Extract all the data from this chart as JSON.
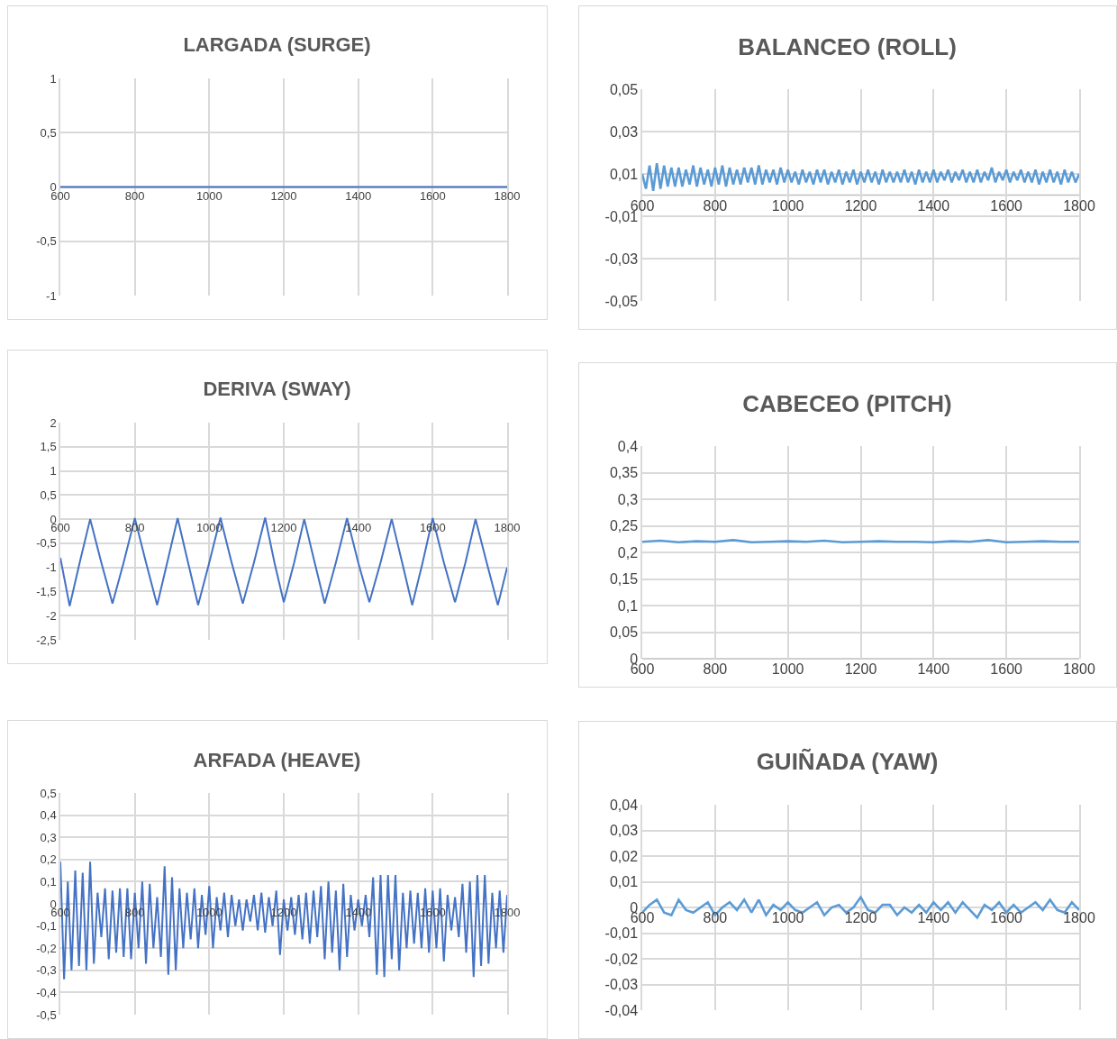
{
  "chart_data": [
    {
      "type": "line",
      "title": "LARGADA (SURGE)",
      "xlim": [
        600,
        1800
      ],
      "xticks": [
        600,
        800,
        1000,
        1200,
        1400,
        1600,
        1800
      ],
      "ylim": [
        -1,
        1
      ],
      "yticks": [
        {
          "value": -1,
          "label": "-1"
        },
        {
          "value": -0.5,
          "label": "-0,5"
        },
        0,
        {
          "value": 0.5,
          "label": "0,5"
        },
        1
      ],
      "grid": true,
      "series": [
        {
          "color": "#4472c4",
          "x": [
            600,
            1800
          ],
          "values": [
            0,
            0
          ]
        }
      ]
    },
    {
      "type": "line",
      "title": "BALANCEO (ROLL)",
      "xlim": [
        600,
        1800
      ],
      "xticks": [
        600,
        800,
        1000,
        1200,
        1400,
        1600,
        1800
      ],
      "ylim": [
        -0.05,
        0.05
      ],
      "yticks": [
        {
          "value": -0.05,
          "label": "-0,05"
        },
        {
          "value": -0.03,
          "label": "-0,03"
        },
        {
          "value": -0.01,
          "label": "-0,01"
        },
        {
          "value": 0.01,
          "label": "0,01"
        },
        {
          "value": 0.03,
          "label": "0,03"
        },
        {
          "value": 0.05,
          "label": "0,05"
        }
      ],
      "grid": true,
      "series": [
        {
          "color": "#5b9bd5",
          "x": [
            600,
            610,
            620,
            630,
            640,
            650,
            660,
            670,
            680,
            690,
            700,
            710,
            720,
            730,
            740,
            750,
            760,
            770,
            780,
            790,
            800,
            810,
            820,
            830,
            840,
            850,
            860,
            870,
            880,
            890,
            900,
            910,
            920,
            930,
            940,
            950,
            960,
            970,
            980,
            990,
            1000,
            1010,
            1020,
            1030,
            1040,
            1050,
            1060,
            1070,
            1080,
            1090,
            1100,
            1110,
            1120,
            1130,
            1140,
            1150,
            1160,
            1170,
            1180,
            1190,
            1200,
            1210,
            1220,
            1230,
            1240,
            1250,
            1260,
            1270,
            1280,
            1290,
            1300,
            1310,
            1320,
            1330,
            1340,
            1350,
            1360,
            1370,
            1380,
            1390,
            1400,
            1410,
            1420,
            1430,
            1440,
            1450,
            1460,
            1470,
            1480,
            1490,
            1500,
            1510,
            1520,
            1530,
            1540,
            1550,
            1560,
            1570,
            1580,
            1590,
            1600,
            1610,
            1620,
            1630,
            1640,
            1650,
            1660,
            1670,
            1680,
            1690,
            1700,
            1710,
            1720,
            1730,
            1740,
            1750,
            1760,
            1770,
            1780,
            1790,
            1800
          ],
          "values": [
            0.01,
            0.003,
            0.014,
            0.002,
            0.015,
            0.003,
            0.014,
            0.004,
            0.013,
            0.004,
            0.013,
            0.004,
            0.012,
            0.005,
            0.014,
            0.004,
            0.013,
            0.005,
            0.012,
            0.004,
            0.013,
            0.005,
            0.014,
            0.004,
            0.013,
            0.005,
            0.012,
            0.005,
            0.013,
            0.006,
            0.013,
            0.005,
            0.014,
            0.005,
            0.012,
            0.006,
            0.012,
            0.005,
            0.013,
            0.006,
            0.012,
            0.006,
            0.011,
            0.005,
            0.012,
            0.006,
            0.011,
            0.005,
            0.012,
            0.006,
            0.012,
            0.005,
            0.011,
            0.006,
            0.012,
            0.005,
            0.011,
            0.006,
            0.012,
            0.005,
            0.011,
            0.006,
            0.012,
            0.006,
            0.011,
            0.005,
            0.012,
            0.006,
            0.011,
            0.006,
            0.011,
            0.006,
            0.012,
            0.006,
            0.011,
            0.005,
            0.012,
            0.006,
            0.011,
            0.006,
            0.012,
            0.006,
            0.011,
            0.007,
            0.012,
            0.006,
            0.011,
            0.007,
            0.012,
            0.006,
            0.011,
            0.006,
            0.012,
            0.006,
            0.011,
            0.007,
            0.013,
            0.006,
            0.011,
            0.007,
            0.012,
            0.006,
            0.011,
            0.007,
            0.012,
            0.006,
            0.011,
            0.006,
            0.012,
            0.005,
            0.011,
            0.006,
            0.012,
            0.006,
            0.011,
            0.005,
            0.012,
            0.006,
            0.011,
            0.006,
            0.01
          ]
        }
      ]
    },
    {
      "type": "line",
      "title": "DERIVA (SWAY)",
      "xlim": [
        600,
        1800
      ],
      "xticks": [
        600,
        800,
        1000,
        1200,
        1400,
        1600,
        1800
      ],
      "ylim": [
        -2.5,
        2
      ],
      "yticks": [
        {
          "value": -2.5,
          "label": "-2,5"
        },
        {
          "value": -2,
          "label": "-2"
        },
        {
          "value": -1.5,
          "label": "-1,5"
        },
        {
          "value": -1,
          "label": "-1"
        },
        {
          "value": -0.5,
          "label": "-0,5"
        },
        0,
        {
          "value": 0.5,
          "label": "0,5"
        },
        1,
        {
          "value": 1.5,
          "label": "1,5"
        },
        2
      ],
      "grid": true,
      "series": [
        {
          "color": "#4472c4",
          "x": [
            600,
            625,
            652,
            680,
            710,
            740,
            770,
            800,
            830,
            860,
            887,
            915,
            943,
            970,
            1000,
            1030,
            1060,
            1090,
            1120,
            1150,
            1175,
            1200,
            1228,
            1255,
            1283,
            1310,
            1340,
            1370,
            1400,
            1430,
            1460,
            1490,
            1518,
            1545,
            1573,
            1600,
            1630,
            1660,
            1688,
            1715,
            1745,
            1775,
            1800
          ],
          "values": [
            -0.8,
            -1.8,
            -0.9,
            0,
            -0.9,
            -1.75,
            -0.9,
            0.02,
            -0.9,
            -1.78,
            -0.9,
            0.02,
            -0.9,
            -1.78,
            -0.9,
            0.03,
            -0.9,
            -1.75,
            -0.9,
            0.03,
            -0.9,
            -1.72,
            -0.9,
            0,
            -0.9,
            -1.75,
            -0.9,
            0.02,
            -0.9,
            -1.72,
            -0.9,
            0,
            -0.9,
            -1.78,
            -0.9,
            0.02,
            -0.9,
            -1.72,
            -0.9,
            0,
            -0.9,
            -1.78,
            -1.0
          ]
        }
      ]
    },
    {
      "type": "line",
      "title": "CABECEO (PITCH)",
      "xlim": [
        600,
        1800
      ],
      "xticks": [
        600,
        800,
        1000,
        1200,
        1400,
        1600,
        1800
      ],
      "ylim": [
        0,
        0.4
      ],
      "yticks": [
        0,
        {
          "value": 0.05,
          "label": "0,05"
        },
        {
          "value": 0.1,
          "label": "0,1"
        },
        {
          "value": 0.15,
          "label": "0,15"
        },
        {
          "value": 0.2,
          "label": "0,2"
        },
        {
          "value": 0.25,
          "label": "0,25"
        },
        {
          "value": 0.3,
          "label": "0,3"
        },
        {
          "value": 0.35,
          "label": "0,35"
        },
        {
          "value": 0.4,
          "label": "0,4"
        }
      ],
      "grid": true,
      "series": [
        {
          "color": "#5b9bd5",
          "x": [
            600,
            650,
            700,
            750,
            800,
            850,
            900,
            950,
            1000,
            1050,
            1100,
            1150,
            1200,
            1250,
            1300,
            1350,
            1400,
            1450,
            1500,
            1550,
            1600,
            1650,
            1700,
            1750,
            1800
          ],
          "values": [
            0.22,
            0.222,
            0.219,
            0.221,
            0.22,
            0.223,
            0.219,
            0.22,
            0.221,
            0.22,
            0.222,
            0.219,
            0.22,
            0.221,
            0.22,
            0.22,
            0.219,
            0.221,
            0.22,
            0.223,
            0.219,
            0.22,
            0.221,
            0.22,
            0.22
          ]
        }
      ]
    },
    {
      "type": "line",
      "title": "ARFADA (HEAVE)",
      "xlim": [
        600,
        1800
      ],
      "xticks": [
        600,
        800,
        1000,
        1200,
        1400,
        1600,
        1800
      ],
      "ylim": [
        -0.5,
        0.5
      ],
      "yticks": [
        {
          "value": -0.5,
          "label": "-0,5"
        },
        {
          "value": -0.4,
          "label": "-0,4"
        },
        {
          "value": -0.3,
          "label": "-0,3"
        },
        {
          "value": -0.2,
          "label": "-0,2"
        },
        {
          "value": -0.1,
          "label": "-0,1"
        },
        0,
        {
          "value": 0.1,
          "label": "0,1"
        },
        {
          "value": 0.2,
          "label": "0,2"
        },
        {
          "value": 0.3,
          "label": "0,3"
        },
        {
          "value": 0.4,
          "label": "0,4"
        },
        {
          "value": 0.5,
          "label": "0,5"
        }
      ],
      "grid": true,
      "series": [
        {
          "color": "#4472c4",
          "x": [
            600,
            610,
            620,
            630,
            640,
            650,
            660,
            670,
            680,
            690,
            700,
            710,
            720,
            730,
            740,
            750,
            760,
            770,
            780,
            790,
            800,
            810,
            820,
            830,
            840,
            850,
            860,
            870,
            880,
            890,
            900,
            910,
            920,
            930,
            940,
            950,
            960,
            970,
            980,
            990,
            1000,
            1010,
            1020,
            1030,
            1040,
            1050,
            1060,
            1070,
            1080,
            1090,
            1100,
            1110,
            1120,
            1130,
            1140,
            1150,
            1160,
            1170,
            1180,
            1190,
            1200,
            1210,
            1220,
            1230,
            1240,
            1250,
            1260,
            1270,
            1280,
            1290,
            1300,
            1310,
            1320,
            1330,
            1340,
            1350,
            1360,
            1370,
            1380,
            1390,
            1400,
            1410,
            1420,
            1430,
            1440,
            1450,
            1460,
            1470,
            1480,
            1490,
            1500,
            1510,
            1520,
            1530,
            1540,
            1550,
            1560,
            1570,
            1580,
            1590,
            1600,
            1610,
            1620,
            1630,
            1640,
            1650,
            1660,
            1670,
            1680,
            1690,
            1700,
            1710,
            1720,
            1730,
            1740,
            1750,
            1760,
            1770,
            1780,
            1790,
            1800
          ],
          "values": [
            0.19,
            -0.34,
            0.1,
            -0.3,
            0.15,
            -0.28,
            0.14,
            -0.3,
            0.19,
            -0.27,
            0.05,
            -0.15,
            0.07,
            -0.25,
            0.06,
            -0.22,
            0.07,
            -0.24,
            0.07,
            -0.25,
            0.05,
            -0.2,
            0.1,
            -0.27,
            0.09,
            -0.2,
            0.03,
            -0.24,
            0.17,
            -0.32,
            0.12,
            -0.3,
            0.07,
            -0.2,
            0.05,
            -0.16,
            0.07,
            -0.2,
            0.04,
            -0.14,
            0.08,
            -0.2,
            0.03,
            -0.12,
            0.05,
            -0.15,
            0.04,
            -0.1,
            0.02,
            -0.12,
            0.02,
            -0.08,
            0.04,
            -0.12,
            0.05,
            -0.13,
            0.03,
            -0.1,
            0.06,
            -0.23,
            0.02,
            -0.12,
            0.03,
            -0.14,
            0.04,
            -0.16,
            0.05,
            -0.18,
            0.06,
            -0.15,
            0.08,
            -0.25,
            0.1,
            -0.22,
            0.06,
            -0.3,
            0.09,
            -0.24,
            0.04,
            -0.12,
            0.02,
            -0.1,
            0.04,
            -0.15,
            0.12,
            -0.32,
            0.13,
            -0.33,
            0.13,
            -0.25,
            0.13,
            -0.3,
            0.05,
            -0.2,
            0.06,
            -0.18,
            0.05,
            -0.2,
            0.07,
            -0.22,
            0.06,
            -0.2,
            0.07,
            -0.26,
            0.04,
            -0.12,
            0.03,
            -0.15,
            0.09,
            -0.22,
            0.1,
            -0.33,
            0.13,
            -0.28,
            0.13,
            -0.27,
            0.05,
            -0.2,
            0.06,
            -0.22,
            0.04
          ]
        }
      ]
    },
    {
      "type": "line",
      "title": "GUIÑADA (YAW)",
      "xlim": [
        600,
        1800
      ],
      "xticks": [
        600,
        800,
        1000,
        1200,
        1400,
        1600,
        1800
      ],
      "ylim": [
        -0.04,
        0.04
      ],
      "yticks": [
        {
          "value": -0.04,
          "label": "-0,04"
        },
        {
          "value": -0.03,
          "label": "-0,03"
        },
        {
          "value": -0.02,
          "label": "-0,02"
        },
        {
          "value": -0.01,
          "label": "-0,01"
        },
        0,
        {
          "value": 0.01,
          "label": "0,01"
        },
        {
          "value": 0.02,
          "label": "0,02"
        },
        {
          "value": 0.03,
          "label": "0,03"
        },
        {
          "value": 0.04,
          "label": "0,04"
        }
      ],
      "grid": true,
      "series": [
        {
          "color": "#5b9bd5",
          "x": [
            600,
            620,
            640,
            660,
            680,
            700,
            720,
            740,
            760,
            780,
            800,
            820,
            840,
            860,
            880,
            900,
            920,
            940,
            960,
            980,
            1000,
            1020,
            1040,
            1060,
            1080,
            1100,
            1120,
            1140,
            1160,
            1180,
            1200,
            1220,
            1240,
            1260,
            1280,
            1300,
            1320,
            1340,
            1360,
            1380,
            1400,
            1420,
            1440,
            1460,
            1480,
            1500,
            1520,
            1540,
            1560,
            1580,
            1600,
            1620,
            1640,
            1660,
            1680,
            1700,
            1720,
            1740,
            1760,
            1780,
            1800
          ],
          "values": [
            -0.002,
            0.001,
            0.003,
            -0.002,
            -0.003,
            0.003,
            -0.001,
            -0.002,
            0,
            0.002,
            -0.003,
            0,
            0.002,
            -0.001,
            0.003,
            -0.002,
            0.003,
            -0.003,
            0.001,
            -0.001,
            0.002,
            -0.001,
            -0.002,
            0,
            0.002,
            -0.003,
            0,
            0.001,
            -0.002,
            0,
            0.004,
            -0.001,
            -0.002,
            0.001,
            0.001,
            -0.003,
            0,
            -0.002,
            0.001,
            -0.002,
            0.002,
            -0.001,
            0.002,
            -0.002,
            0.002,
            -0.001,
            -0.004,
            0.001,
            -0.001,
            0.002,
            -0.002,
            0.001,
            -0.002,
            0,
            0.002,
            -0.001,
            0.003,
            -0.001,
            -0.002,
            0.002,
            -0.001
          ]
        }
      ]
    }
  ]
}
